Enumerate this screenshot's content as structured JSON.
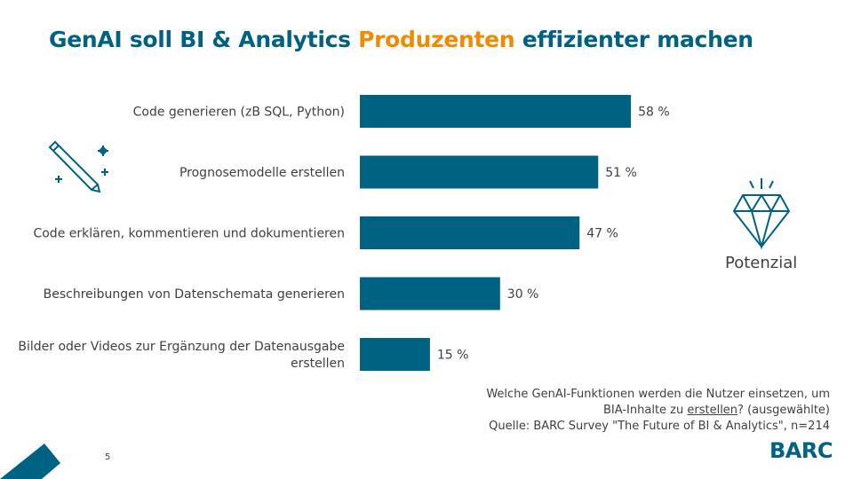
{
  "title": {
    "part1": "GenAI soll BI & Analytics ",
    "highlight": "Produzenten",
    "part2": " effizienter machen"
  },
  "colors": {
    "bar": "#006283",
    "accent": "#F08A00",
    "text": "#404040"
  },
  "chart_data": {
    "type": "bar",
    "orientation": "horizontal",
    "categories": [
      [
        "Code generieren (zB SQL, Python)"
      ],
      [
        "Prognosemodelle erstellen"
      ],
      [
        "Code erklären, kommentieren und dokumentieren"
      ],
      [
        "Beschreibungen von Datenschemata generieren"
      ],
      [
        "Bilder oder Videos zur Ergänzung der Datenausgabe",
        "erstellen"
      ]
    ],
    "values": [
      58,
      51,
      47,
      30,
      15
    ],
    "value_labels": [
      "58 %",
      "51 %",
      "47 %",
      "30 %",
      "15 %"
    ],
    "xlim": [
      0,
      100
    ],
    "grid": false
  },
  "icons": {
    "left": "pencil-sparkle-icon",
    "right": "diamond-icon"
  },
  "potential_label": "Potenzial",
  "note": {
    "line1": "Welche GenAI-Funktionen werden die Nutzer einsetzen, um",
    "line2_pre": "BIA-Inhalte zu ",
    "line2_u": "erstellen",
    "line2_post": "? (ausgewählte)",
    "line3": "Quelle: BARC Survey \"The Future of BI & Analytics\", n=214"
  },
  "logo": "BARC",
  "page_number": "5"
}
